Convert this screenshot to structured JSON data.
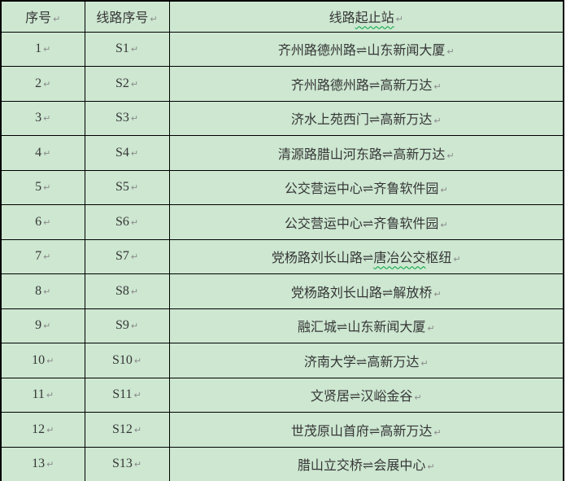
{
  "page": {
    "background_color": "#ffffff"
  },
  "table": {
    "cell_background_color": "#cde7d1",
    "border_color": "#000000",
    "text_color": "#363636",
    "spellcheck_underline_color": "#00a43b",
    "paragraph_mark": "↵",
    "paragraph_mark_color": "#8a8a8a",
    "route_separator_symbol": "⇌",
    "columns": [
      {
        "key": "no",
        "label_segments": [
          {
            "t": "序号",
            "wavy": false
          }
        ]
      },
      {
        "key": "line",
        "label_segments": [
          {
            "t": "线路序号",
            "wavy": false
          }
        ]
      },
      {
        "key": "route",
        "label_segments": [
          {
            "t": "线路",
            "wavy": false
          },
          {
            "t": "起止站",
            "wavy": true
          }
        ]
      }
    ],
    "rows": [
      {
        "no": "1",
        "line": "S1",
        "route_segments": [
          {
            "t": "齐州路德州路⇌山东新闻大厦",
            "wavy": false
          }
        ]
      },
      {
        "no": "2",
        "line": "S2",
        "route_segments": [
          {
            "t": "齐州路德州路⇌高新万达",
            "wavy": false
          }
        ]
      },
      {
        "no": "3",
        "line": "S3",
        "route_segments": [
          {
            "t": "济水上苑西门⇌高新万达",
            "wavy": false
          }
        ]
      },
      {
        "no": "4",
        "line": "S4",
        "route_segments": [
          {
            "t": "清源路腊山河东路⇌高新万达",
            "wavy": false
          }
        ]
      },
      {
        "no": "5",
        "line": "S5",
        "route_segments": [
          {
            "t": "公交营运中心⇌齐鲁软件园",
            "wavy": false
          }
        ]
      },
      {
        "no": "6",
        "line": "S6",
        "route_segments": [
          {
            "t": "公交营运中心⇌齐鲁软件园",
            "wavy": false
          }
        ]
      },
      {
        "no": "7",
        "line": "S7",
        "route_segments": [
          {
            "t": "党杨路刘长山路⇌",
            "wavy": false
          },
          {
            "t": "唐冶公交",
            "wavy": true
          },
          {
            "t": "枢纽",
            "wavy": false
          }
        ]
      },
      {
        "no": "8",
        "line": "S8",
        "route_segments": [
          {
            "t": "党杨路刘长山路⇌解放桥",
            "wavy": false
          }
        ]
      },
      {
        "no": "9",
        "line": "S9",
        "route_segments": [
          {
            "t": "融汇城⇌山东新闻大厦",
            "wavy": false
          }
        ]
      },
      {
        "no": "10",
        "line": "S10",
        "route_segments": [
          {
            "t": "济南大学⇌高新万达",
            "wavy": false
          }
        ]
      },
      {
        "no": "11",
        "line": "S11",
        "route_segments": [
          {
            "t": "文贤居⇌汉峪金谷",
            "wavy": false
          }
        ]
      },
      {
        "no": "12",
        "line": "S12",
        "route_segments": [
          {
            "t": "世茂原山首府⇌高新万达",
            "wavy": false
          }
        ]
      },
      {
        "no": "13",
        "line": "S13",
        "route_segments": [
          {
            "t": "腊山立交桥⇌会展中心",
            "wavy": false
          }
        ]
      }
    ]
  }
}
